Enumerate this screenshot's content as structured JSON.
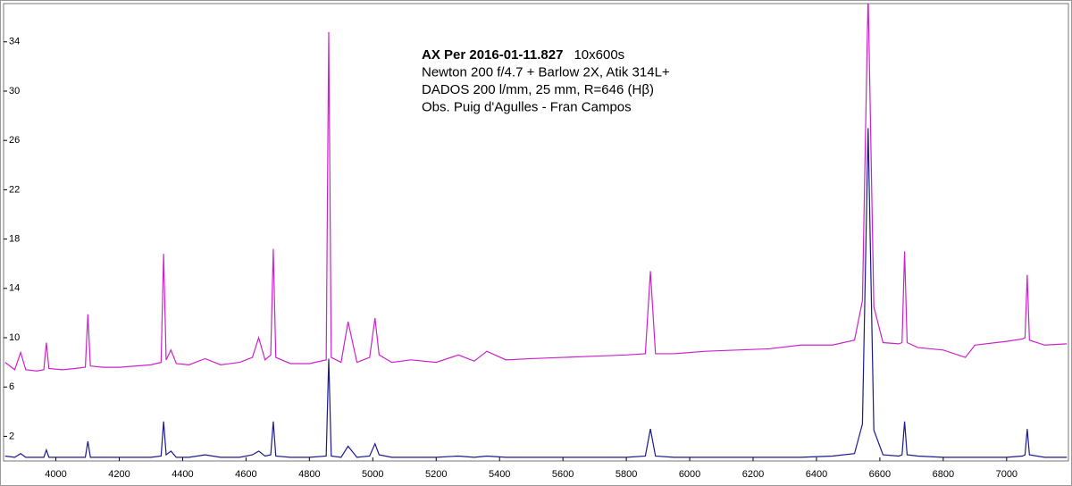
{
  "chart_data": {
    "type": "line",
    "annotations": [
      {
        "bold": "AX Per   2016-01-11.827",
        "text": "10x600s"
      },
      "Newton 200 f/4.7 + Barlow 2X, Atik 314L+",
      "DADOS 200 l/mm, 25 mm, R=646 (Hβ)",
      "Obs. Puig d'Agulles - Fran Campos"
    ],
    "x": [
      3840,
      3870,
      3889,
      3905,
      3940,
      3962,
      3970,
      3978,
      4020,
      4060,
      4093,
      4101,
      4109,
      4150,
      4200,
      4250,
      4300,
      4332,
      4340,
      4348,
      4363,
      4380,
      4420,
      4471,
      4520,
      4580,
      4620,
      4640,
      4660,
      4678,
      4686,
      4694,
      4740,
      4800,
      4853,
      4861,
      4869,
      4900,
      4922,
      4950,
      4990,
      5007,
      5020,
      5060,
      5120,
      5200,
      5270,
      5320,
      5360,
      5420,
      5500,
      5600,
      5700,
      5800,
      5860,
      5876,
      5892,
      5950,
      6050,
      6150,
      6250,
      6350,
      6450,
      6520,
      6545,
      6563,
      6581,
      6610,
      6660,
      6670,
      6678,
      6686,
      6720,
      6800,
      6870,
      6900,
      7000,
      7050,
      7058,
      7065,
      7072,
      7120,
      7190
    ],
    "series": [
      {
        "color": "#cc22cc",
        "values": [
          8.0,
          7.4,
          8.8,
          7.4,
          7.3,
          7.4,
          9.6,
          7.5,
          7.4,
          7.5,
          7.6,
          11.9,
          7.7,
          7.6,
          7.6,
          7.7,
          7.8,
          8.0,
          16.8,
          8.2,
          9.0,
          7.9,
          7.8,
          8.3,
          7.8,
          8.0,
          8.4,
          10.0,
          8.2,
          8.6,
          17.2,
          8.4,
          7.9,
          7.9,
          8.2,
          34.8,
          8.4,
          8.0,
          11.3,
          8.0,
          8.4,
          11.6,
          8.6,
          8.0,
          8.2,
          8.0,
          8.6,
          8.1,
          8.9,
          8.2,
          8.3,
          8.4,
          8.5,
          8.6,
          8.7,
          15.4,
          8.7,
          8.7,
          8.9,
          9.0,
          9.1,
          9.4,
          9.4,
          9.8,
          13.0,
          38,
          12.5,
          9.6,
          9.5,
          9.6,
          17.0,
          9.6,
          9.2,
          9.0,
          8.4,
          9.4,
          9.7,
          9.9,
          10.0,
          15.1,
          9.8,
          9.4,
          9.5
        ]
      },
      {
        "color": "#1a1a8c",
        "values": [
          0.4,
          0.3,
          0.6,
          0.3,
          0.3,
          0.3,
          0.9,
          0.3,
          0.3,
          0.3,
          0.3,
          1.6,
          0.3,
          0.3,
          0.3,
          0.3,
          0.3,
          0.4,
          3.2,
          0.5,
          0.8,
          0.3,
          0.3,
          0.5,
          0.3,
          0.3,
          0.5,
          0.8,
          0.4,
          0.5,
          3.2,
          0.4,
          0.3,
          0.3,
          0.4,
          8.3,
          0.4,
          0.3,
          1.2,
          0.3,
          0.4,
          1.4,
          0.5,
          0.3,
          0.3,
          0.3,
          0.4,
          0.3,
          0.4,
          0.3,
          0.3,
          0.3,
          0.3,
          0.3,
          0.4,
          2.6,
          0.4,
          0.3,
          0.3,
          0.3,
          0.3,
          0.3,
          0.4,
          0.6,
          3.0,
          27,
          2.5,
          0.5,
          0.4,
          0.5,
          3.2,
          0.5,
          0.4,
          0.3,
          0.3,
          0.3,
          0.3,
          0.4,
          0.5,
          2.6,
          0.5,
          0.3,
          0.3
        ]
      }
    ],
    "xlim": [
      3835,
      7195
    ],
    "ylim": [
      0,
      37.1
    ],
    "xticks": [
      4000,
      4200,
      4400,
      4600,
      4800,
      5000,
      5200,
      5400,
      5600,
      5800,
      6000,
      6200,
      6400,
      6600,
      6800,
      7000
    ],
    "yticks": [
      2,
      6,
      10,
      14,
      18,
      22,
      26,
      30,
      34
    ]
  }
}
